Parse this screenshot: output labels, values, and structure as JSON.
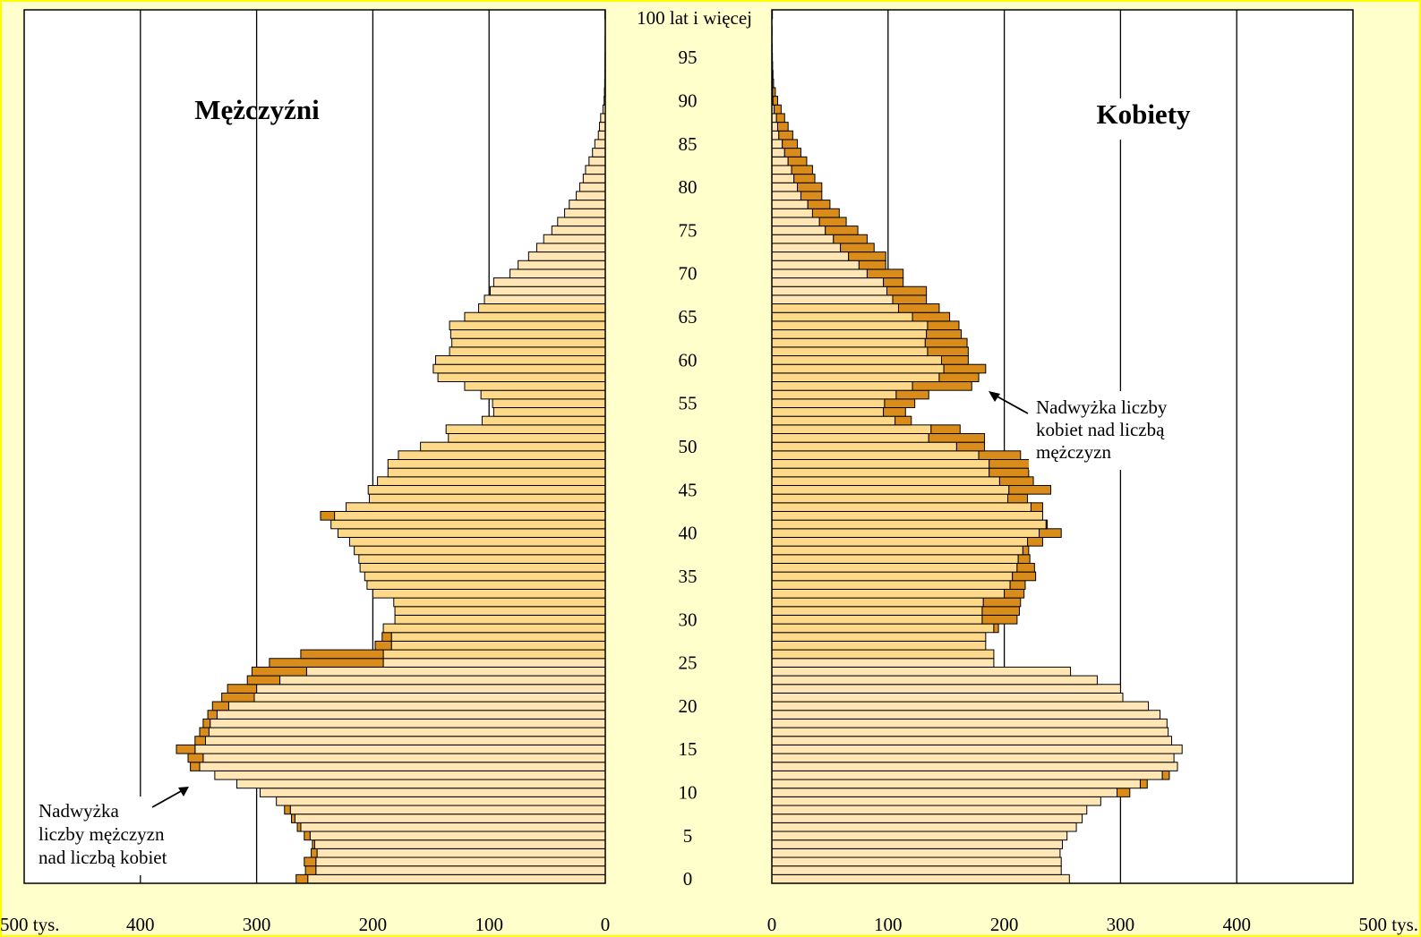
{
  "chart_data": {
    "type": "bar",
    "orientation": "horizontal",
    "variant": "population-pyramid",
    "unit_label": "tys.",
    "top_age_label": "100 lat i więcej",
    "age_ticks": [
      "0",
      "5",
      "10",
      "15",
      "20",
      "25",
      "30",
      "35",
      "40",
      "45",
      "50",
      "55",
      "60",
      "65",
      "70",
      "75",
      "80",
      "85",
      "90",
      "95"
    ],
    "x_ticks_left": [
      "500 tys.",
      "400",
      "300",
      "200",
      "100",
      "0"
    ],
    "x_ticks_right": [
      "0",
      "100",
      "200",
      "300",
      "400",
      "500 tys."
    ],
    "xlim": [
      0,
      500
    ],
    "grid_x": true,
    "colors": {
      "bar_fill": "#ffd98a",
      "bar_fill_light": "#ffe6b4",
      "excess_fill": "#d98c1a",
      "bar_stroke": "#000000",
      "background": "#ffffcc",
      "frame_border": "#ffff00"
    },
    "panels": {
      "male": {
        "title": "Mężczyźni",
        "annotation": [
          "Nadwyżka",
          "liczby mężczyzn",
          "nad liczbą kobiet"
        ]
      },
      "female": {
        "title": "Kobiety",
        "annotation": [
          "Nadwyżka liczby",
          "kobiet nad liczbą",
          "mężczyzn"
        ]
      }
    },
    "ages": [
      0,
      1,
      2,
      3,
      4,
      5,
      6,
      7,
      8,
      9,
      10,
      11,
      12,
      13,
      14,
      15,
      16,
      17,
      18,
      19,
      20,
      21,
      22,
      23,
      24,
      25,
      26,
      27,
      28,
      29,
      30,
      31,
      32,
      33,
      34,
      35,
      36,
      37,
      38,
      39,
      40,
      41,
      42,
      43,
      44,
      45,
      46,
      47,
      48,
      49,
      50,
      51,
      52,
      53,
      54,
      55,
      56,
      57,
      58,
      59,
      60,
      61,
      62,
      63,
      64,
      65,
      66,
      67,
      68,
      69,
      70,
      71,
      72,
      73,
      74,
      75,
      76,
      77,
      78,
      79,
      80,
      81,
      82,
      83,
      84,
      85,
      86,
      87,
      88,
      89,
      90,
      91,
      92,
      93,
      94,
      95,
      96,
      97,
      98,
      99,
      100
    ],
    "series": [
      {
        "name": "Mężczyźni",
        "values": [
          266,
          258,
          259,
          253,
          252,
          259,
          265,
          270,
          276,
          283,
          297,
          317,
          336,
          357,
          359,
          369,
          353,
          349,
          346,
          342,
          338,
          330,
          325,
          308,
          304,
          289,
          262,
          198,
          192,
          191,
          181,
          181,
          182,
          200,
          205,
          207,
          211,
          212,
          216,
          220,
          230,
          236,
          245,
          223,
          203,
          204,
          196,
          187,
          187,
          178,
          159,
          135,
          137,
          106,
          96,
          97,
          107,
          121,
          144,
          148,
          146,
          134,
          132,
          133,
          134,
          121,
          109,
          104,
          99,
          96,
          82,
          75,
          66,
          59,
          53,
          46,
          41,
          35,
          31,
          25,
          22,
          19,
          17,
          14,
          11,
          9,
          6,
          5,
          4,
          2,
          1,
          0.7,
          0.5,
          0.4,
          0.3,
          0.3,
          0.2,
          0.2,
          0.1,
          0.1,
          0.4
        ]
      },
      {
        "name": "Kobiety",
        "values": [
          256,
          249,
          249,
          248,
          250,
          254,
          262,
          267,
          271,
          283,
          308,
          323,
          342,
          349,
          346,
          353,
          344,
          341,
          340,
          334,
          324,
          302,
          300,
          280,
          257,
          191,
          191,
          184,
          184,
          195,
          211,
          213,
          214,
          217,
          218,
          227,
          226,
          222,
          221,
          233,
          249,
          237,
          233,
          233,
          220,
          240,
          225,
          221,
          222,
          214,
          183,
          183,
          162,
          120,
          115,
          123,
          135,
          172,
          178,
          184,
          169,
          169,
          168,
          163,
          161,
          153,
          144,
          133,
          133,
          113,
          113,
          98,
          98,
          88,
          82,
          74,
          64,
          58,
          50,
          43,
          43,
          37,
          35,
          30,
          25,
          22,
          18,
          14,
          11,
          8,
          5,
          3,
          1.5,
          1,
          0.7,
          0.5,
          0.3,
          0.2,
          0.2,
          0.1,
          0.5
        ]
      }
    ]
  }
}
